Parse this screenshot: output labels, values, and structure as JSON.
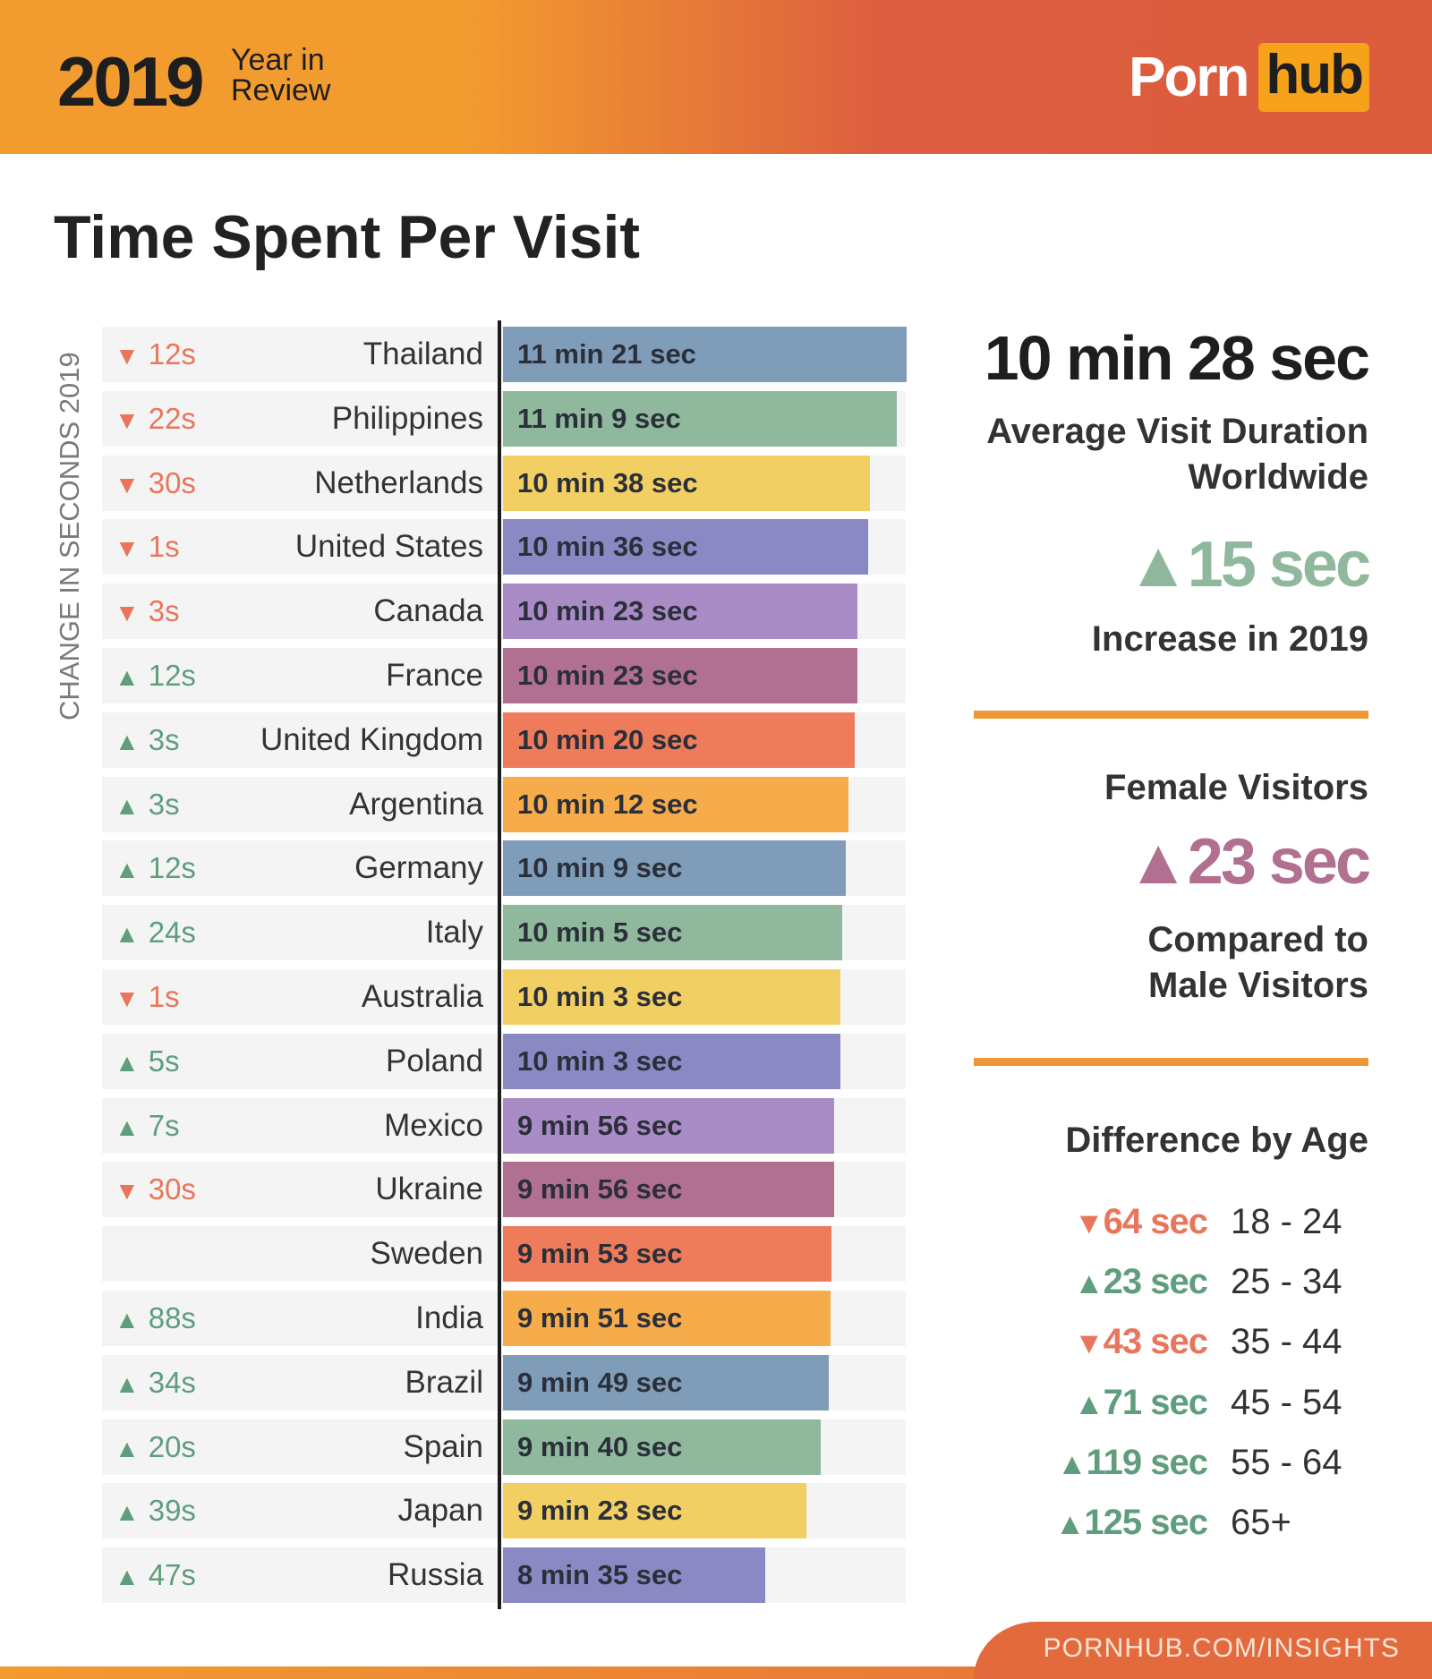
{
  "header": {
    "year": "2019",
    "subtitle_line1": "Year in",
    "subtitle_line2": "Review",
    "logo_part1": "Porn",
    "logo_part2": "hub"
  },
  "colors": {
    "down": "#e8765c",
    "up": "#5f9e7c",
    "header_start": "#f29b2f",
    "header_end": "#dc5c3e",
    "divider": "#ef9636"
  },
  "chart_data": {
    "type": "bar",
    "orientation": "horizontal",
    "title": "Time Spent Per Visit",
    "change_axis_label": "CHANGE IN SECONDS 2019",
    "categories": [
      "Thailand",
      "Philippines",
      "Netherlands",
      "United States",
      "Canada",
      "France",
      "United Kingdom",
      "Argentina",
      "Germany",
      "Italy",
      "Australia",
      "Poland",
      "Mexico",
      "Ukraine",
      "Sweden",
      "India",
      "Brazil",
      "Spain",
      "Japan",
      "Russia"
    ],
    "values_seconds": [
      681,
      669,
      638,
      636,
      623,
      623,
      620,
      612,
      609,
      605,
      603,
      603,
      596,
      596,
      593,
      591,
      589,
      580,
      563,
      515
    ],
    "labels": [
      "11 min 21 sec",
      "11 min 9 sec",
      "10 min 38 sec",
      "10 min 36 sec",
      "10 min 23 sec",
      "10 min 23 sec",
      "10 min 20 sec",
      "10 min 12 sec",
      "10 min 9 sec",
      "10 min 5 sec",
      "10 min 3 sec",
      "10 min 3 sec",
      "9 min 56 sec",
      "9 min 56 sec",
      "9 min 53 sec",
      "9 min 51 sec",
      "9 min 49 sec",
      "9 min 40 sec",
      "9 min 23 sec",
      "8 min 35 sec"
    ],
    "changes": [
      {
        "dir": "down",
        "text": "12s"
      },
      {
        "dir": "down",
        "text": "22s"
      },
      {
        "dir": "down",
        "text": "30s"
      },
      {
        "dir": "down",
        "text": "1s"
      },
      {
        "dir": "down",
        "text": "3s"
      },
      {
        "dir": "up",
        "text": "12s"
      },
      {
        "dir": "up",
        "text": "3s"
      },
      {
        "dir": "up",
        "text": "3s"
      },
      {
        "dir": "up",
        "text": "12s"
      },
      {
        "dir": "up",
        "text": "24s"
      },
      {
        "dir": "down",
        "text": "1s"
      },
      {
        "dir": "up",
        "text": "5s"
      },
      {
        "dir": "up",
        "text": "7s"
      },
      {
        "dir": "down",
        "text": "30s"
      },
      null,
      {
        "dir": "up",
        "text": "88s"
      },
      {
        "dir": "up",
        "text": "34s"
      },
      {
        "dir": "up",
        "text": "20s"
      },
      {
        "dir": "up",
        "text": "39s"
      },
      {
        "dir": "up",
        "text": "47s"
      }
    ],
    "bar_colors": [
      "#7f9cb8",
      "#8fb89d",
      "#f2cf63",
      "#8a89c4",
      "#a98bc6",
      "#b27090",
      "#ee7b5a",
      "#f7ac4c"
    ]
  },
  "summary": {
    "average": "10 min 28 sec",
    "average_label_line1": "Average Visit Duration",
    "average_label_line2": "Worldwide",
    "increase": "15 sec",
    "increase_color": "#8fb89d",
    "increase_label": "Increase in 2019",
    "female_title": "Female Visitors",
    "female_diff": "23 sec",
    "female_color": "#b27090",
    "female_label_line1": "Compared to",
    "female_label_line2": "Male Visitors"
  },
  "age": {
    "title": "Difference by Age",
    "rows": [
      {
        "dir": "down",
        "value": "64 sec",
        "range": "18 - 24"
      },
      {
        "dir": "up",
        "value": "23 sec",
        "range": "25 - 34"
      },
      {
        "dir": "down",
        "value": "43 sec",
        "range": "35 - 44"
      },
      {
        "dir": "up",
        "value": "71 sec",
        "range": "45 - 54"
      },
      {
        "dir": "up",
        "value": "119 sec",
        "range": "55 - 64"
      },
      {
        "dir": "up",
        "value": "125 sec",
        "range": "65+"
      }
    ]
  },
  "footer": {
    "link": "PORNHUB.COM/INSIGHTS"
  }
}
